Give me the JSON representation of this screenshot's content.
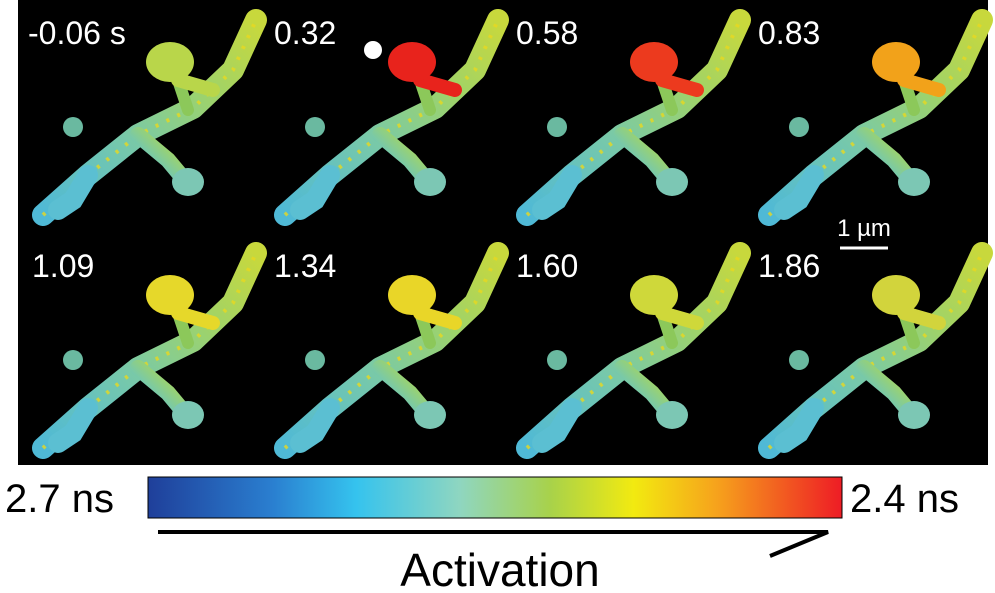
{
  "panels": [
    {
      "label": "-0.06 s"
    },
    {
      "label": "0.32"
    },
    {
      "label": "0.58"
    },
    {
      "label": "0.83"
    },
    {
      "label": "1.09"
    },
    {
      "label": "1.34"
    },
    {
      "label": "1.60"
    },
    {
      "label": "1.86"
    }
  ],
  "scale_bar": "1 µm",
  "colorbar": {
    "min_label": "2.7 ns",
    "max_label": "2.4 ns",
    "caption": "Activation"
  }
}
